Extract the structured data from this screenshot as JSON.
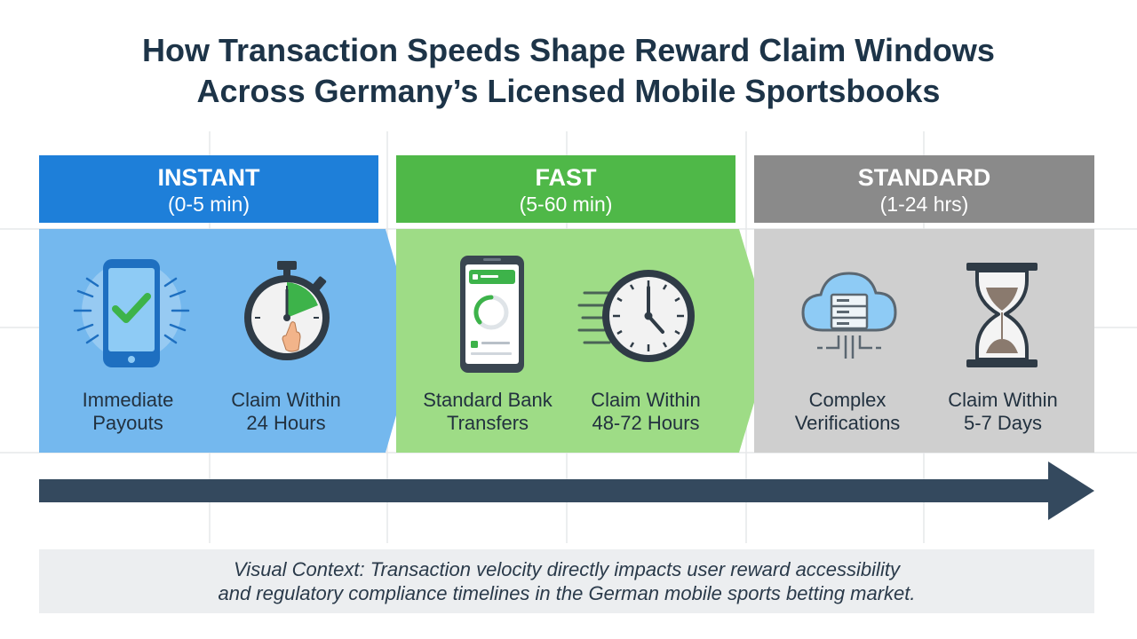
{
  "title": {
    "line1": "How Transaction Speeds Shape Reward Claim Windows",
    "line2": "Across Germany’s Licensed Mobile Sportsbooks"
  },
  "tiers": [
    {
      "name": "INSTANT",
      "range": "(0-5 min)",
      "color": "#1e7fd9",
      "band_color": "#74b8ee",
      "items": [
        {
          "icon": "smartphone-check-icon",
          "line1": "Immediate",
          "line2": "Payouts"
        },
        {
          "icon": "stopwatch-icon",
          "line1": "Claim Within",
          "line2": "24 Hours"
        }
      ]
    },
    {
      "name": "FAST",
      "range": "(5-60 min)",
      "color": "#4fb848",
      "band_color": "#9edc86",
      "items": [
        {
          "icon": "banking-app-phone-icon",
          "line1": "Standard Bank",
          "line2": "Transfers"
        },
        {
          "icon": "fast-clock-icon",
          "line1": "Claim Within",
          "line2": "48-72 Hours"
        }
      ]
    },
    {
      "name": "STANDARD",
      "range": "(1-24 hrs)",
      "color": "#8a8a8a",
      "band_color": "#cfcfcf",
      "items": [
        {
          "icon": "cloud-server-icon",
          "line1": "Complex",
          "line2": "Verifications"
        },
        {
          "icon": "hourglass-icon",
          "line1": "Claim Within",
          "line2": "5-7 Days"
        }
      ]
    }
  ],
  "timeline_color": "#34495e",
  "context": {
    "line1": "Visual Context: Transaction velocity directly impacts user reward accessibility",
    "line2": "and regulatory compliance timelines in the German mobile sports betting market."
  }
}
